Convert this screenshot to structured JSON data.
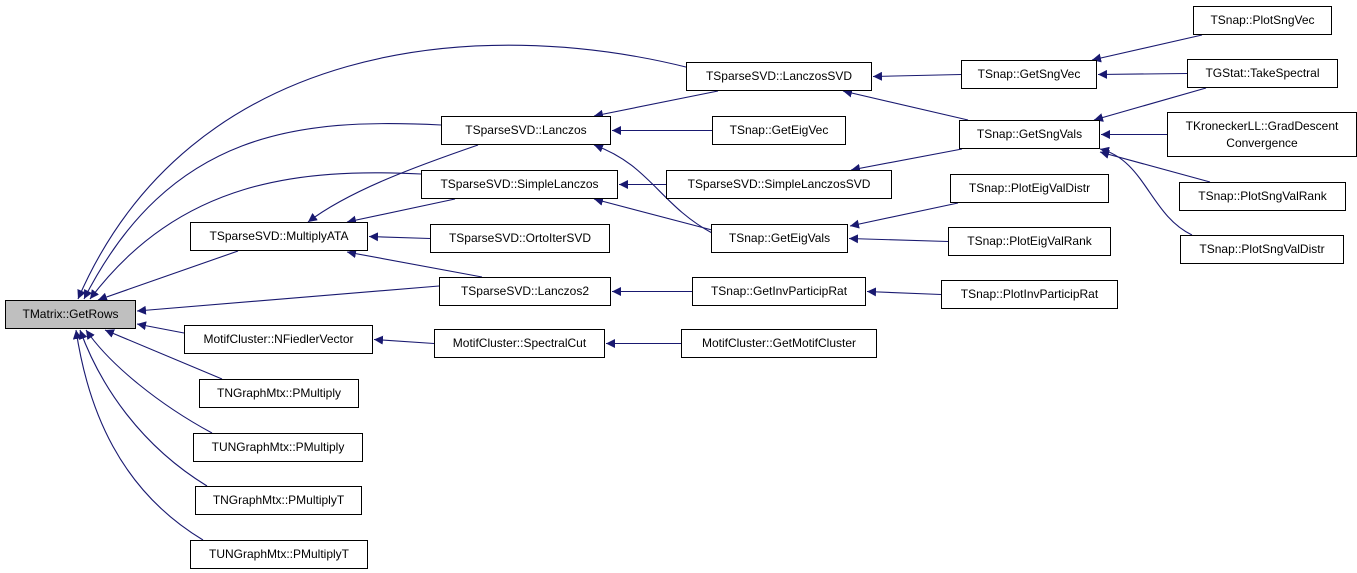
{
  "graph": {
    "edge_color": "#191970",
    "root_fill": "#bfbfbf",
    "nodes": [
      {
        "id": "GetRows",
        "label": "TMatrix::GetRows"
      },
      {
        "id": "MultiplyATA",
        "label": "TSparseSVD::MultiplyATA"
      },
      {
        "id": "NFiedlerVector",
        "label": "MotifCluster::NFiedlerVector"
      },
      {
        "id": "TNPMultiply",
        "label": "TNGraphMtx::PMultiply"
      },
      {
        "id": "TUNPMultiply",
        "label": "TUNGraphMtx::PMultiply"
      },
      {
        "id": "TNPMultiplyT",
        "label": "TNGraphMtx::PMultiplyT"
      },
      {
        "id": "TUNPMultiplyT",
        "label": "TUNGraphMtx::PMultiplyT"
      },
      {
        "id": "Lanczos",
        "label": "TSparseSVD::Lanczos"
      },
      {
        "id": "SimpleLanczos",
        "label": "TSparseSVD::SimpleLanczos"
      },
      {
        "id": "OrtoIterSVD",
        "label": "TSparseSVD::OrtoIterSVD"
      },
      {
        "id": "Lanczos2",
        "label": "TSparseSVD::Lanczos2"
      },
      {
        "id": "SpectralCut",
        "label": "MotifCluster::SpectralCut"
      },
      {
        "id": "LanczosSVD",
        "label": "TSparseSVD::LanczosSVD"
      },
      {
        "id": "GetEigVec",
        "label": "TSnap::GetEigVec"
      },
      {
        "id": "SimpleLanczosSVD",
        "label": "TSparseSVD::SimpleLanczosSVD"
      },
      {
        "id": "GetEigVals",
        "label": "TSnap::GetEigVals"
      },
      {
        "id": "GetInvParticipRat",
        "label": "TSnap::GetInvParticipRat"
      },
      {
        "id": "GetMotifCluster",
        "label": "MotifCluster::GetMotifCluster"
      },
      {
        "id": "GetSngVec",
        "label": "TSnap::GetSngVec"
      },
      {
        "id": "GetSngVals",
        "label": "TSnap::GetSngVals"
      },
      {
        "id": "PlotEigValDistr",
        "label": "TSnap::PlotEigValDistr"
      },
      {
        "id": "PlotEigValRank",
        "label": "TSnap::PlotEigValRank"
      },
      {
        "id": "PlotInvParticipRat",
        "label": "TSnap::PlotInvParticipRat"
      },
      {
        "id": "PlotSngVec",
        "label": "TSnap::PlotSngVec"
      },
      {
        "id": "TakeSpectral",
        "label": "TGStat::TakeSpectral"
      },
      {
        "id": "GradDescent",
        "label": "TKroneckerLL::GradDescent",
        "label2": "Convergence"
      },
      {
        "id": "PlotSngValRank",
        "label": "TSnap::PlotSngValRank"
      },
      {
        "id": "PlotSngValDistr",
        "label": "TSnap::PlotSngValDistr"
      }
    ],
    "edges": [
      [
        "LanczosSVD",
        "GetRows"
      ],
      [
        "Lanczos",
        "GetRows"
      ],
      [
        "SimpleLanczos",
        "GetRows"
      ],
      [
        "MultiplyATA",
        "GetRows"
      ],
      [
        "Lanczos2",
        "GetRows"
      ],
      [
        "NFiedlerVector",
        "GetRows"
      ],
      [
        "TNPMultiply",
        "GetRows"
      ],
      [
        "TUNPMultiply",
        "GetRows"
      ],
      [
        "TNPMultiplyT",
        "GetRows"
      ],
      [
        "TUNPMultiplyT",
        "GetRows"
      ],
      [
        "Lanczos",
        "MultiplyATA"
      ],
      [
        "SimpleLanczos",
        "MultiplyATA"
      ],
      [
        "OrtoIterSVD",
        "MultiplyATA"
      ],
      [
        "Lanczos2",
        "MultiplyATA"
      ],
      [
        "SpectralCut",
        "NFiedlerVector"
      ],
      [
        "LanczosSVD",
        "Lanczos"
      ],
      [
        "GetEigVec",
        "Lanczos"
      ],
      [
        "GetEigVals",
        "Lanczos"
      ],
      [
        "SimpleLanczosSVD",
        "SimpleLanczos"
      ],
      [
        "GetEigVals",
        "SimpleLanczos"
      ],
      [
        "GetInvParticipRat",
        "Lanczos2"
      ],
      [
        "GetMotifCluster",
        "SpectralCut"
      ],
      [
        "GetSngVec",
        "LanczosSVD"
      ],
      [
        "GetSngVals",
        "LanczosSVD"
      ],
      [
        "GetSngVals",
        "SimpleLanczosSVD"
      ],
      [
        "PlotEigValDistr",
        "GetEigVals"
      ],
      [
        "PlotEigValRank",
        "GetEigVals"
      ],
      [
        "PlotInvParticipRat",
        "GetInvParticipRat"
      ],
      [
        "PlotSngVec",
        "GetSngVec"
      ],
      [
        "TakeSpectral",
        "GetSngVec"
      ],
      [
        "TakeSpectral",
        "GetSngVals"
      ],
      [
        "GradDescent",
        "GetSngVals"
      ],
      [
        "PlotSngValRank",
        "GetSngVals"
      ],
      [
        "PlotSngValDistr",
        "GetSngVals"
      ]
    ]
  }
}
